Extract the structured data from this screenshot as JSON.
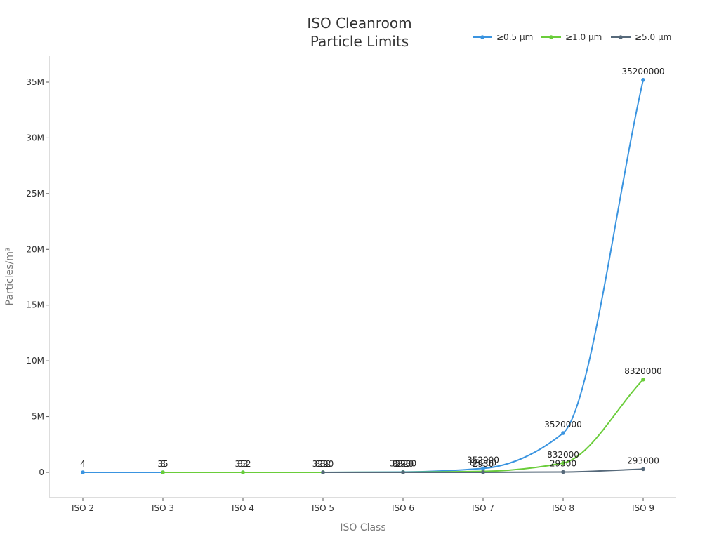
{
  "chart_data": {
    "type": "line",
    "title": "ISO Cleanroom Particle Limits",
    "title_lines": [
      "ISO Cleanroom",
      "Particle Limits"
    ],
    "xlabel": "ISO Class",
    "ylabel": "Particles/m³",
    "categories": [
      "ISO 2",
      "ISO 3",
      "ISO 4",
      "ISO 5",
      "ISO 6",
      "ISO 7",
      "ISO 8",
      "ISO 9"
    ],
    "ylim": [
      -2000000,
      37000000
    ],
    "yticks": [
      0,
      5000000,
      10000000,
      15000000,
      20000000,
      25000000,
      30000000,
      35000000
    ],
    "ytick_labels": [
      "0",
      "5M",
      "10M",
      "15M",
      "20M",
      "25M",
      "30M",
      "35M"
    ],
    "grid": false,
    "legend_position": "top-right",
    "series": [
      {
        "name": "≥0.5 µm",
        "color": "#3a94e0",
        "values": [
          4,
          35,
          352,
          3520,
          35200,
          352000,
          3520000,
          35200000
        ]
      },
      {
        "name": "≥1.0 µm",
        "color": "#6acd3a",
        "values": [
          null,
          8,
          83,
          832,
          8320,
          83200,
          832000,
          8320000
        ]
      },
      {
        "name": "≥5.0 µm",
        "color": "#56697a",
        "values": [
          null,
          null,
          null,
          29,
          293,
          2930,
          29300,
          293000
        ]
      }
    ]
  }
}
